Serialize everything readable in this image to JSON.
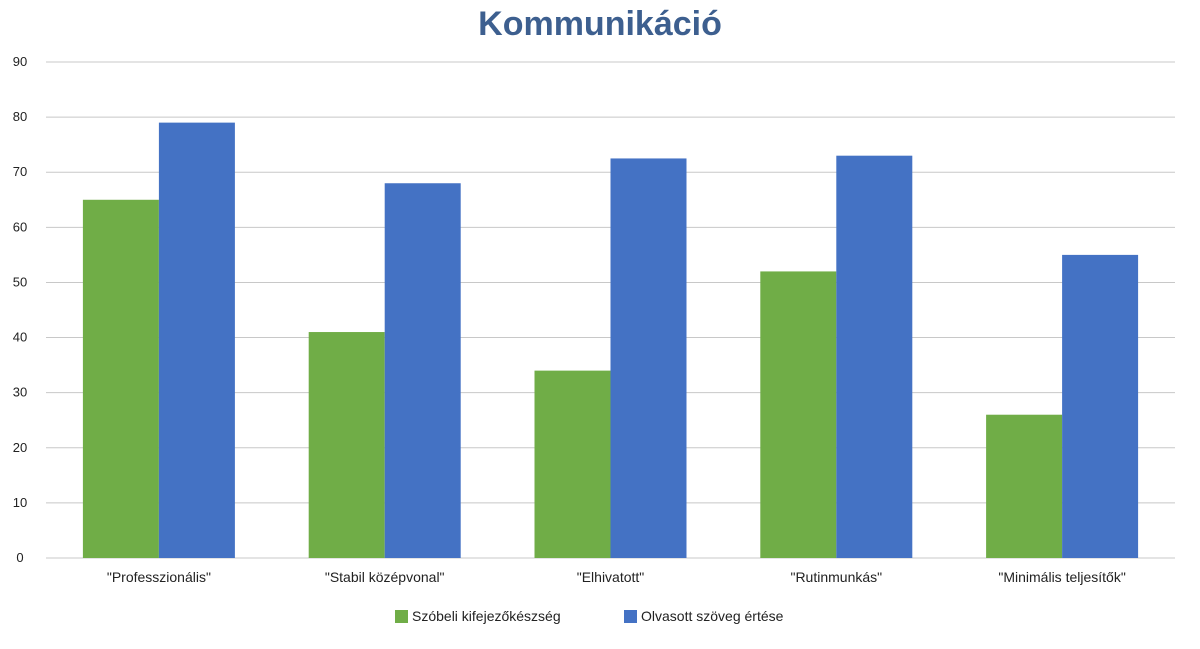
{
  "chart_data": {
    "type": "bar",
    "title": "Kommunikáció",
    "xlabel": "",
    "ylabel": "",
    "categories": [
      "\"Professzionális\"",
      "\"Stabil középvonal\"",
      "\"Elhivatott\"",
      "\"Rutinmunkás\"",
      "\"Minimális teljesítők\""
    ],
    "series": [
      {
        "name": "Szóbeli kifejezőkészség",
        "color": "#70ad47",
        "values": [
          65,
          41,
          34,
          52,
          26
        ]
      },
      {
        "name": "Olvasott szöveg értése",
        "color": "#4472c4",
        "values": [
          79,
          68,
          72.5,
          73,
          55
        ]
      }
    ],
    "ylim": [
      0,
      90
    ],
    "yticks": [
      "0",
      "10",
      "20",
      "30",
      "40",
      "50",
      "60",
      "70",
      "80",
      "90"
    ],
    "grid": true,
    "legend_position": "bottom",
    "colors": {
      "title": "#3d5f8f",
      "axis_text": "#222222",
      "gridline": "#c8c8c8"
    }
  }
}
